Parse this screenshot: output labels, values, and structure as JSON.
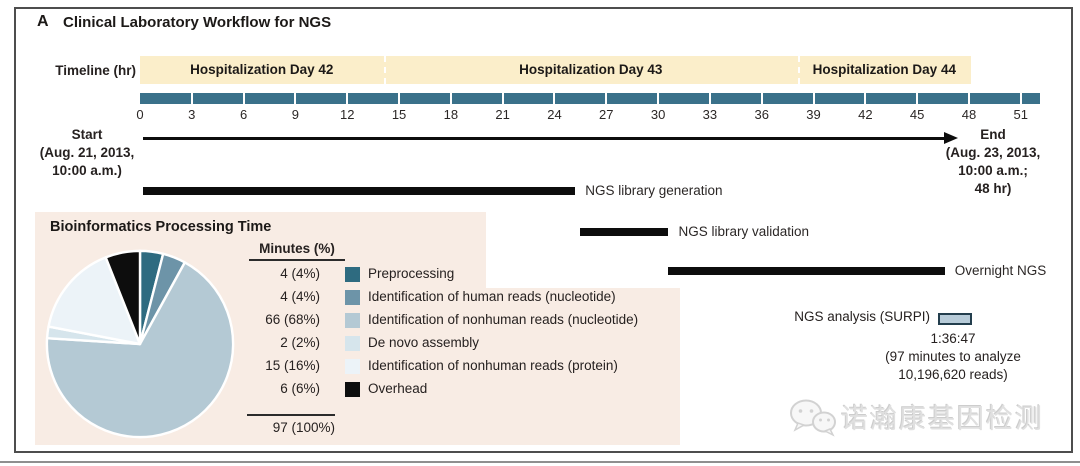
{
  "panel": {
    "label": "A",
    "title": "Clinical Laboratory Workflow for NGS"
  },
  "timeline": {
    "label": "Timeline (hr)",
    "ticks": [
      "0",
      "3",
      "6",
      "9",
      "12",
      "15",
      "18",
      "21",
      "24",
      "27",
      "30",
      "33",
      "36",
      "39",
      "42",
      "45",
      "48",
      "51"
    ],
    "axis_end_hr": 52.2,
    "day_bands": [
      {
        "label": "Hospitalization Day 42",
        "start_hr": 0,
        "end_hr": 14.1
      },
      {
        "label": "Hospitalization Day 43",
        "start_hr": 14.1,
        "end_hr": 38.1
      },
      {
        "label": "Hospitalization Day 44",
        "start_hr": 38.1,
        "end_hr": 48.1
      }
    ],
    "start": {
      "title": "Start",
      "lines": [
        "(Aug. 21, 2013,",
        "10:00 a.m.)"
      ]
    },
    "end": {
      "title": "End",
      "lines": [
        "(Aug. 23, 2013,",
        "10:00 a.m.;",
        "48 hr)"
      ]
    }
  },
  "tasks": [
    {
      "label": "NGS library generation",
      "start_hr": 0.2,
      "end_hr": 25.2
    },
    {
      "label": "NGS library validation",
      "start_hr": 25.5,
      "end_hr": 30.6
    },
    {
      "label": "Overnight NGS",
      "start_hr": 30.6,
      "end_hr": 46.6
    }
  ],
  "surpi": {
    "label": "NGS analysis (SURPI)",
    "duration": "1:36:47",
    "note": [
      "(97 minutes to analyze",
      "10,196,620 reads)"
    ],
    "bar_start_hr": 46.2,
    "bar_end_hr": 48.2,
    "bar_color": "#b7cbd8"
  },
  "chart_data": [
    {
      "type": "pie",
      "title": "Bioinformatics Processing Time",
      "column_header": "Minutes (%)",
      "start_angle_deg": -90,
      "direction": "clockwise",
      "slices": [
        {
          "label": "Preprocessing",
          "minutes": 4,
          "pct": 4,
          "value_label": "4 (4%)",
          "color": "#2e6b80"
        },
        {
          "label": "Identification of human reads (nucleotide)",
          "minutes": 4,
          "pct": 4,
          "value_label": "4 (4%)",
          "color": "#6d94a8"
        },
        {
          "label": "Identification of nonhuman reads (nucleotide)",
          "minutes": 66,
          "pct": 68,
          "value_label": "66 (68%)",
          "color": "#b4c9d4"
        },
        {
          "label": "De novo assembly",
          "minutes": 2,
          "pct": 2,
          "value_label": "2 (2%)",
          "color": "#d6e5ec"
        },
        {
          "label": "Identification of nonhuman reads (protein)",
          "minutes": 15,
          "pct": 16,
          "value_label": "15 (16%)",
          "color": "#ecf3f8"
        },
        {
          "label": "Overhead",
          "minutes": 6,
          "pct": 6,
          "value_label": "6 (6%)",
          "color": "#0d0d0d"
        }
      ],
      "total_minutes": 97,
      "total_label": "97 (100%)"
    },
    {
      "type": "bar",
      "subtype": "timeline-gantt",
      "xlabel": "Timeline (hr)",
      "xlim": [
        0,
        52.2
      ],
      "bars": [
        {
          "name": "NGS library generation",
          "start_hr": 0.2,
          "end_hr": 25.2
        },
        {
          "name": "NGS library validation",
          "start_hr": 25.5,
          "end_hr": 30.6
        },
        {
          "name": "Overnight NGS",
          "start_hr": 30.6,
          "end_hr": 46.6
        },
        {
          "name": "NGS analysis (SURPI)",
          "start_hr": 46.2,
          "end_hr": 48.2
        }
      ]
    }
  ],
  "watermark": {
    "text": "诺瀚康基因检测",
    "icon": "wechat-icon"
  },
  "colors": {
    "timeline_bar": "#3a718a",
    "day_band_bg": "#fbeeca",
    "task_bar": "#0d0d0d",
    "info_box_bg": "#f8ece4",
    "frame_border": "#4d4d4d"
  }
}
